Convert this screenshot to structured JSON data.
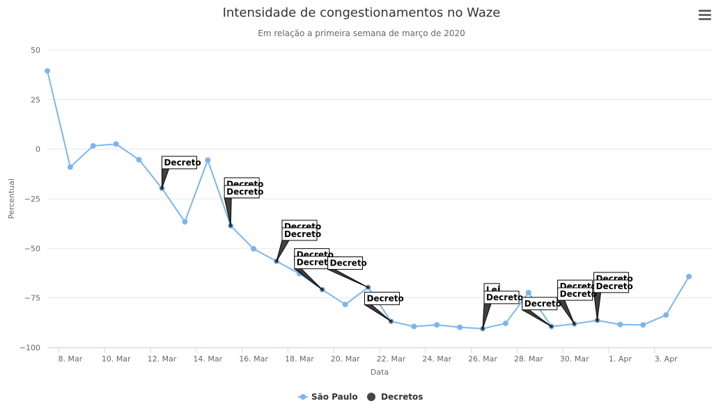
{
  "chart_data": {
    "type": "line",
    "title": "Intensidade de congestionamentos no Waze",
    "subtitle": "Em relação a primeira semana de março de 2020",
    "xlabel": "Data",
    "ylabel": "Percentual",
    "ylim": [
      -100,
      50
    ],
    "yticks": [
      50,
      25,
      0,
      -25,
      -50,
      -75,
      -100
    ],
    "ytick_labels": [
      "50",
      "25",
      "0",
      "−25",
      "−50",
      "−75",
      "−100"
    ],
    "xlim": [
      "2020-03-07",
      "2020-04-05"
    ],
    "xticks": [
      {
        "date": "2020-03-08",
        "label": "8. Mar"
      },
      {
        "date": "2020-03-10",
        "label": "10. Mar"
      },
      {
        "date": "2020-03-12",
        "label": "12. Mar"
      },
      {
        "date": "2020-03-14",
        "label": "14. Mar"
      },
      {
        "date": "2020-03-16",
        "label": "16. Mar"
      },
      {
        "date": "2020-03-18",
        "label": "18. Mar"
      },
      {
        "date": "2020-03-20",
        "label": "20. Mar"
      },
      {
        "date": "2020-03-22",
        "label": "22. Mar"
      },
      {
        "date": "2020-03-24",
        "label": "24. Mar"
      },
      {
        "date": "2020-03-26",
        "label": "26. Mar"
      },
      {
        "date": "2020-03-28",
        "label": "28. Mar"
      },
      {
        "date": "2020-03-30",
        "label": "30. Mar"
      },
      {
        "date": "2020-04-01",
        "label": "1. Apr"
      },
      {
        "date": "2020-04-03",
        "label": "3. Apr"
      }
    ],
    "grid": true,
    "legend_position": "bottom-center",
    "series": [
      {
        "name": "São Paulo",
        "color": "#7cb5ec",
        "points": [
          {
            "x": "2020-03-07",
            "y": 39.5
          },
          {
            "x": "2020-03-08",
            "y": -9
          },
          {
            "x": "2020-03-09",
            "y": 1.7
          },
          {
            "x": "2020-03-10",
            "y": 2.6
          },
          {
            "x": "2020-03-11",
            "y": -5.3
          },
          {
            "x": "2020-03-12",
            "y": -19.7
          },
          {
            "x": "2020-03-13",
            "y": -36.6
          },
          {
            "x": "2020-03-14",
            "y": -5.5
          },
          {
            "x": "2020-03-15",
            "y": -38.6
          },
          {
            "x": "2020-03-16",
            "y": -50.2
          },
          {
            "x": "2020-03-17",
            "y": -56.5
          },
          {
            "x": "2020-03-18",
            "y": -62.7
          },
          {
            "x": "2020-03-19",
            "y": -70.8
          },
          {
            "x": "2020-03-20",
            "y": -78.3
          },
          {
            "x": "2020-03-21",
            "y": -69.7
          },
          {
            "x": "2020-03-22",
            "y": -86.8
          },
          {
            "x": "2020-03-23",
            "y": -89.4
          },
          {
            "x": "2020-03-24",
            "y": -88.6
          },
          {
            "x": "2020-03-25",
            "y": -89.8
          },
          {
            "x": "2020-03-26",
            "y": -90.5
          },
          {
            "x": "2020-03-27",
            "y": -87.8
          },
          {
            "x": "2020-03-28",
            "y": -72.3
          },
          {
            "x": "2020-03-29",
            "y": -89.4
          },
          {
            "x": "2020-03-30",
            "y": -88.1
          },
          {
            "x": "2020-03-31",
            "y": -86.3
          },
          {
            "x": "2020-04-01",
            "y": -88.4
          },
          {
            "x": "2020-04-02",
            "y": -88.6
          },
          {
            "x": "2020-04-03",
            "y": -83.6
          },
          {
            "x": "2020-04-04",
            "y": -64.2
          }
        ]
      },
      {
        "name": "Decretos",
        "color": "#434348",
        "points": [
          {
            "x": "2020-03-12",
            "y": -19.7
          },
          {
            "x": "2020-03-15",
            "y": -38.6
          },
          {
            "x": "2020-03-17",
            "y": -56.5
          },
          {
            "x": "2020-03-19",
            "y": -70.8
          },
          {
            "x": "2020-03-21",
            "y": -69.7
          },
          {
            "x": "2020-03-22",
            "y": -86.8
          },
          {
            "x": "2020-03-26",
            "y": -90.5
          },
          {
            "x": "2020-03-29",
            "y": -89.4
          },
          {
            "x": "2020-03-30",
            "y": -88.1
          },
          {
            "x": "2020-03-31",
            "y": -86.3
          }
        ]
      }
    ],
    "annotations": [
      {
        "x": "2020-03-12",
        "y": -19.7,
        "labels": [
          "Decreto"
        ]
      },
      {
        "x": "2020-03-15",
        "y": -38.6,
        "labels": [
          "Decreto",
          "Decreto"
        ]
      },
      {
        "x": "2020-03-17",
        "y": -56.5,
        "labels": [
          "Decreto",
          "Decreto"
        ]
      },
      {
        "x": "2020-03-19",
        "y": -70.8,
        "labels": [
          "Decreto",
          "Decreto"
        ]
      },
      {
        "x": "2020-03-21",
        "y": -69.7,
        "labels": [
          "Decreto"
        ]
      },
      {
        "x": "2020-03-22",
        "y": -86.8,
        "labels": [
          "Decreto"
        ]
      },
      {
        "x": "2020-03-26",
        "y": -90.5,
        "labels": [
          "Lei",
          "Decreto"
        ]
      },
      {
        "x": "2020-03-29",
        "y": -89.4,
        "labels": [
          "Decreto"
        ]
      },
      {
        "x": "2020-03-30",
        "y": -88.1,
        "labels": [
          "Decreto",
          "Decreto"
        ]
      },
      {
        "x": "2020-03-31",
        "y": -86.3,
        "labels": [
          "Decreto",
          "Decreto"
        ]
      }
    ]
  }
}
